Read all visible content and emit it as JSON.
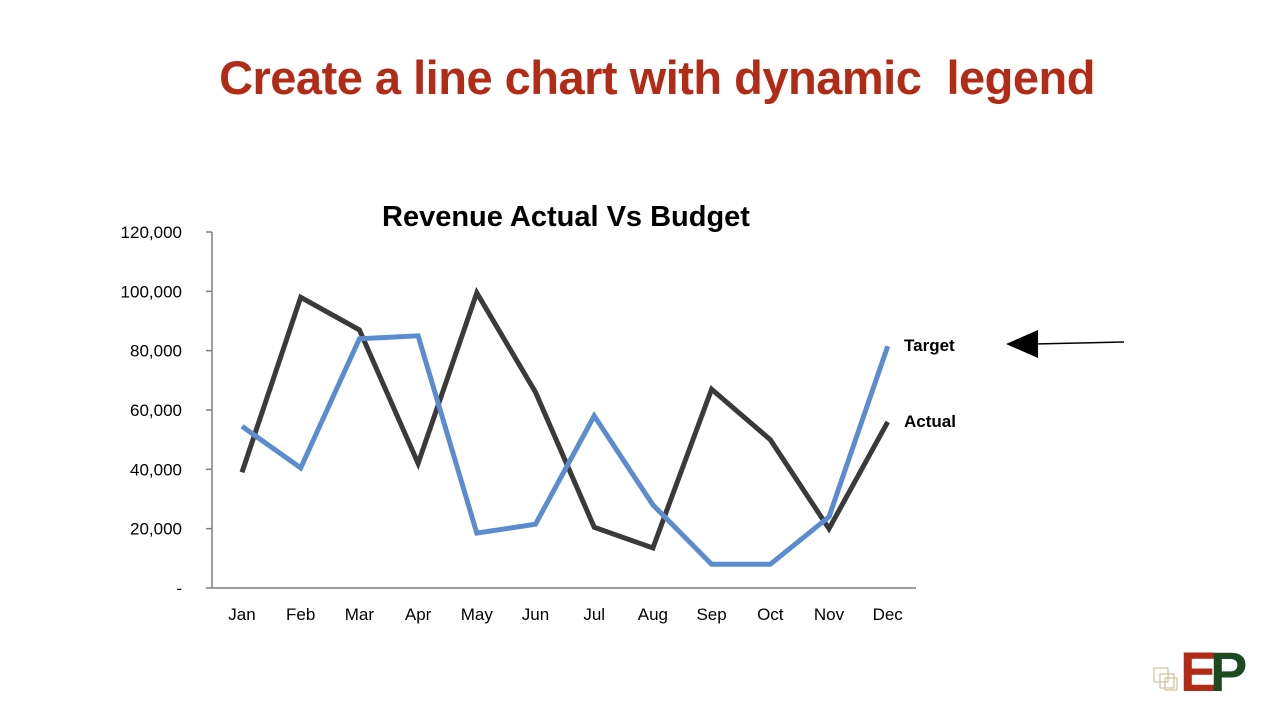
{
  "slide": {
    "title": "Create a line chart with dynamic  legend"
  },
  "logo": {
    "text_e": "E",
    "text_p": "P"
  },
  "colors": {
    "title": "#b22b17",
    "actual_line": "#3a3a3a",
    "target_line": "#5b8ccf",
    "axis": "#7f7f7f",
    "arrow": "#000000"
  },
  "chart_data": {
    "type": "line",
    "title": "Revenue Actual Vs Budget",
    "xlabel": "",
    "ylabel": "",
    "categories": [
      "Jan",
      "Feb",
      "Mar",
      "Apr",
      "May",
      "Jun",
      "Jul",
      "Aug",
      "Sep",
      "Oct",
      "Nov",
      "Dec"
    ],
    "ylim": [
      0,
      120000
    ],
    "yticks": [
      0,
      20000,
      40000,
      60000,
      80000,
      100000,
      120000
    ],
    "ytick_labels": [
      "-",
      "20,000",
      "40,000",
      "60,000",
      "80,000",
      "100,000",
      "120,000"
    ],
    "grid": false,
    "legend": "end-of-line labels",
    "series": [
      {
        "name": "Actual",
        "color": "#3a3a3a",
        "values": [
          39000,
          98000,
          87000,
          42000,
          99500,
          66000,
          20500,
          13500,
          67000,
          50000,
          20000,
          56000
        ]
      },
      {
        "name": "Target",
        "color": "#5b8ccf",
        "values": [
          54500,
          40500,
          84000,
          85000,
          18500,
          21500,
          58000,
          28000,
          8000,
          8000,
          24000,
          81500
        ]
      }
    ],
    "annotation": "arrow pointing at Target label"
  }
}
